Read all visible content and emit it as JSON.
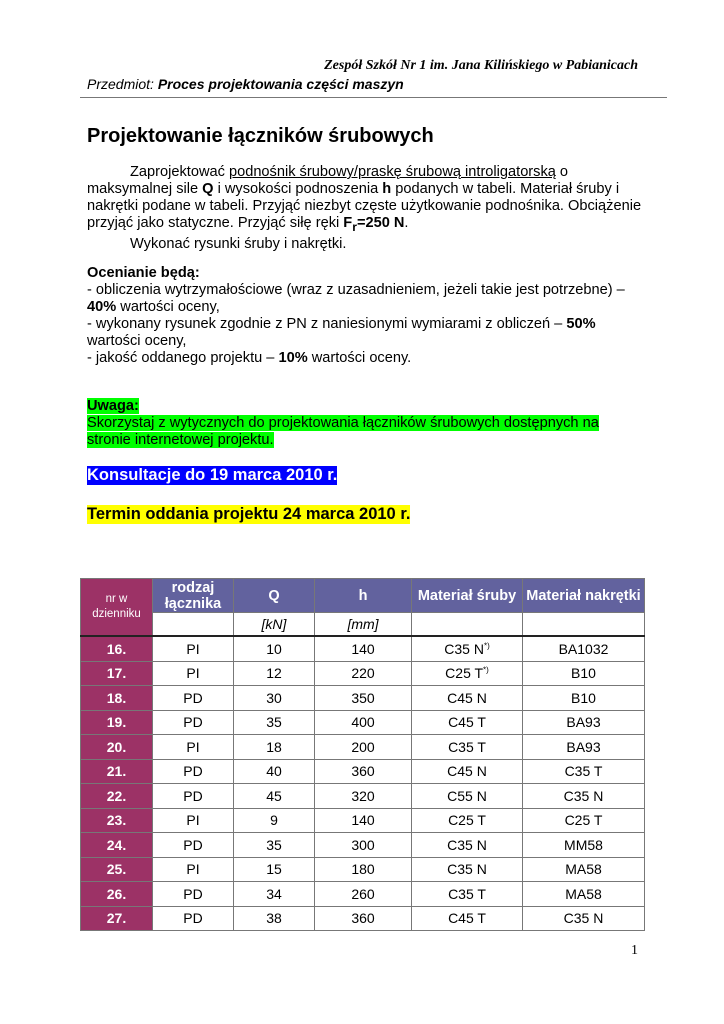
{
  "header": {
    "school": "Zespół Szkół Nr 1 im. Jana Kilińskiego w Pabianicach",
    "subject_label": "Przedmiot:",
    "subject": "Proces projektowania części maszyn"
  },
  "title": "Projektowanie łączników śrubowych",
  "body": {
    "p1_a": "Zaprojektować ",
    "p1_u": "podnośnik śrubowy/praskę śrubową introligatorską",
    "p1_b": " o maksymalnej sile ",
    "Q": "Q",
    "p1_c": " i wysokości podnoszenia ",
    "h": "h",
    "p1_d": " podanych w tabeli. Materiał śruby i nakrętki podane w tabeli. Przyjąć niezbyt częste użytkowanie podnośnika. Obciążenie przyjąć jako statyczne. Przyjąć siłę ręki ",
    "F": "F",
    "F_sub": "r",
    "F_val": "=250 N",
    "p1_end": ".",
    "p2": "Wykonać rysunki śruby i nakrętki."
  },
  "grading": {
    "heading": "Ocenianie będą:",
    "l1a": "- obliczenia wytrzymałościowe (wraz z uzasadnieniem, jeżeli takie jest potrzebne) – ",
    "l1b": "40%",
    "l1c": " wartości oceny,",
    "l2a": "- wykonany rysunek zgodnie z PN z naniesionymi wymiarami z obliczeń – ",
    "l2b": "50%",
    "l2c": " wartości oceny,",
    "l3a": "- jakość oddanego projektu – ",
    "l3b": "10%",
    "l3c": " wartości oceny."
  },
  "note": {
    "heading": "Uwaga:",
    "line1": "Skorzystaj z wytycznych do projektowania łączników śrubowych dostępnych na",
    "line2": "stronie internetowej projektu."
  },
  "consultation": "Konsultacje do 19 marca 2010 r.",
  "deadline": "Termin oddania projektu 24 marca 2010 r.",
  "table": {
    "headers": [
      "nr w dzienniku",
      "rodzaj łącznika",
      "Q",
      "h",
      "Materiał śruby",
      "Materiał nakrętki"
    ],
    "units": [
      "",
      "",
      "[kN]",
      "[mm]",
      "",
      ""
    ],
    "rows": [
      [
        "16.",
        "PI",
        "10",
        "140",
        "C35 N",
        "BA1032",
        "*)"
      ],
      [
        "17.",
        "PI",
        "12",
        "220",
        "C25 T",
        "B10",
        "*)"
      ],
      [
        "18.",
        "PD",
        "30",
        "350",
        "C45 N",
        "B10",
        ""
      ],
      [
        "19.",
        "PD",
        "35",
        "400",
        "C45 T",
        "BA93",
        ""
      ],
      [
        "20.",
        "PI",
        "18",
        "200",
        "C35 T",
        "BA93",
        ""
      ],
      [
        "21.",
        "PD",
        "40",
        "360",
        "C45 N",
        "C35 T",
        ""
      ],
      [
        "22.",
        "PD",
        "45",
        "320",
        "C55 N",
        "C35 N",
        ""
      ],
      [
        "23.",
        "PI",
        "9",
        "140",
        "C25 T",
        "C25 T",
        ""
      ],
      [
        "24.",
        "PD",
        "35",
        "300",
        "C35 N",
        "MM58",
        ""
      ],
      [
        "25.",
        "PI",
        "15",
        "180",
        "C35 N",
        "MA58",
        ""
      ],
      [
        "26.",
        "PD",
        "34",
        "260",
        "C35 T",
        "MA58",
        ""
      ],
      [
        "27.",
        "PD",
        "38",
        "360",
        "C45 T",
        "C35 N",
        ""
      ]
    ]
  },
  "page_number": "1",
  "colors": {
    "header_blue": "#62629e",
    "nr_maroon": "#9c3266",
    "highlight_green": "#00ff00",
    "highlight_blue": "#0000ff",
    "highlight_yellow": "#ffff00"
  }
}
